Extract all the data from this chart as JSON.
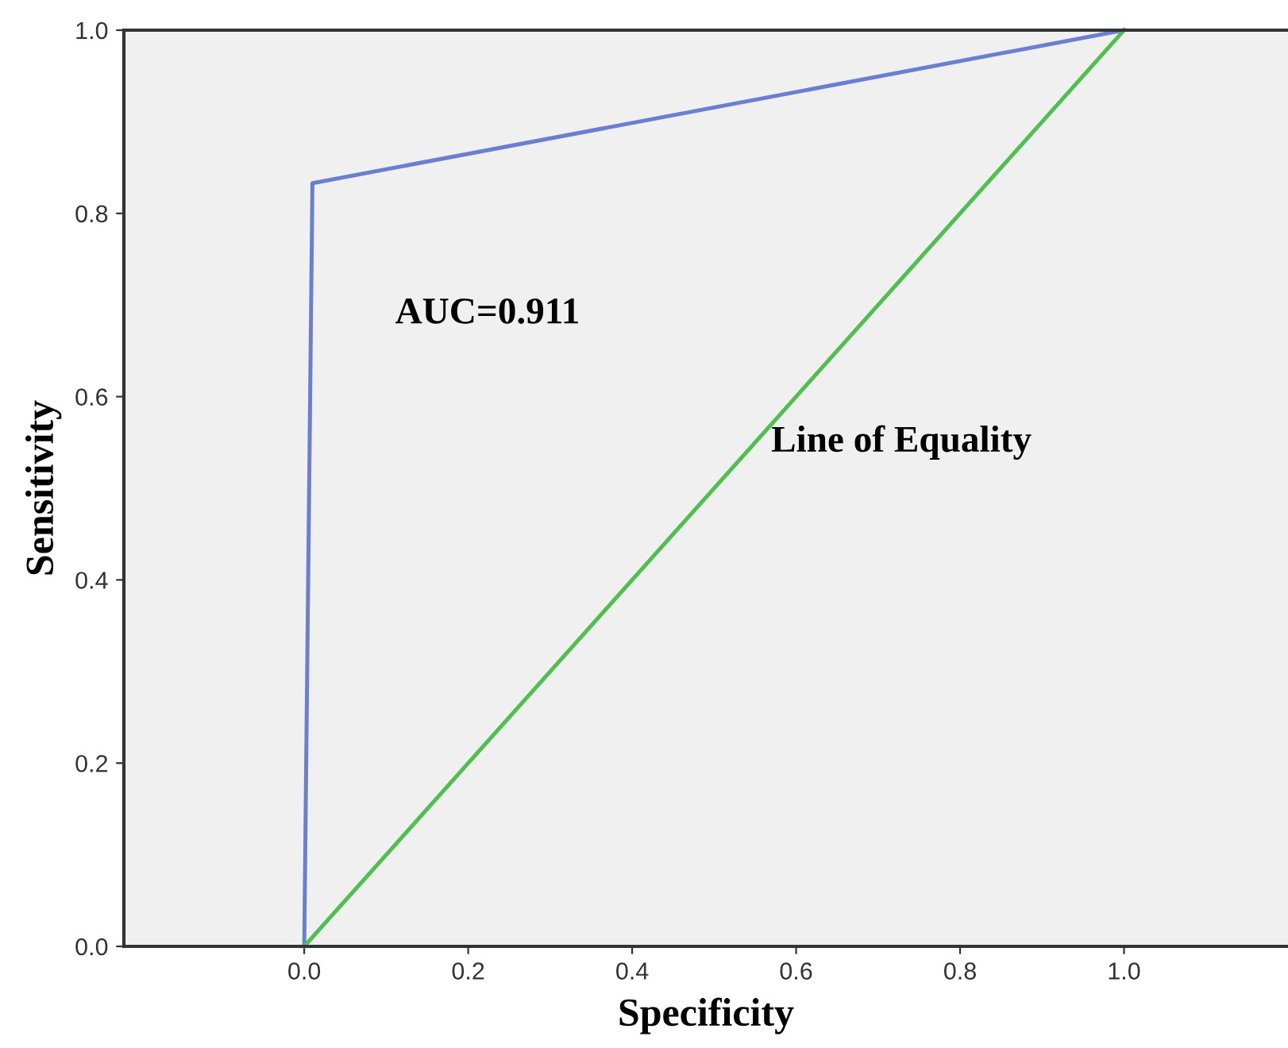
{
  "chart_data": {
    "type": "line",
    "xlabel": "Specificity",
    "ylabel": "Sensitivity",
    "series": [
      {
        "color": "#6b7fd0",
        "x": [
          0,
          0.01,
          1
        ],
        "values": [
          0,
          0.833,
          1
        ]
      },
      {
        "color": "#4fc04f",
        "x": [
          0,
          1
        ],
        "values": [
          0,
          1
        ]
      }
    ],
    "xlim": [
      -0.22,
      1.2
    ],
    "ylim": [
      0,
      1
    ],
    "xticks": [
      {
        "value": 0,
        "label": "0.0"
      },
      0.2,
      0.4,
      0.6,
      0.8,
      {
        "value": 1,
        "label": "1.0"
      }
    ],
    "yticks": [
      {
        "value": 0,
        "label": "0.0"
      },
      0.2,
      0.4,
      0.6,
      0.8,
      {
        "value": 1,
        "label": "1.0"
      }
    ],
    "annotations": [
      "AUC=0.911",
      "Line of Equality"
    ],
    "grid": false,
    "legend": false,
    "marker": "none",
    "line_style": "solid"
  }
}
